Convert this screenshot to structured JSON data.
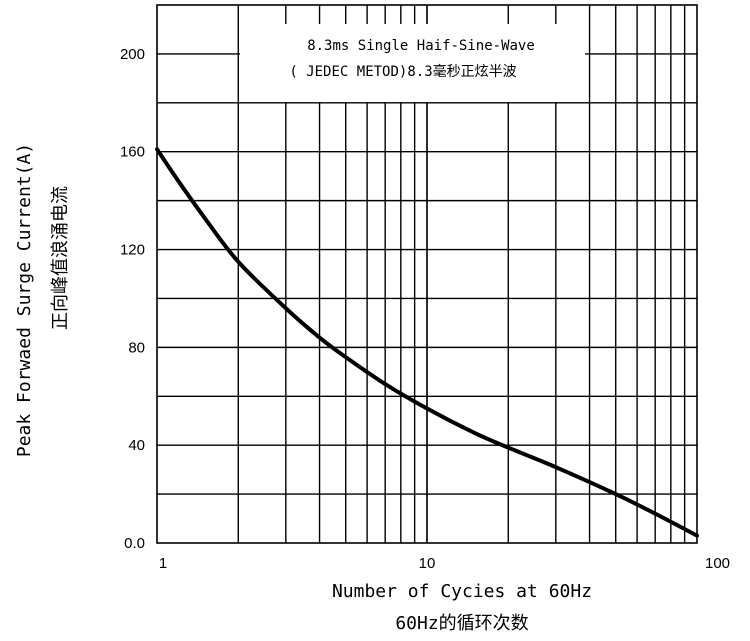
{
  "chart_data": {
    "type": "line",
    "x_scale": "log",
    "xlim": [
      1,
      100
    ],
    "ylim": [
      0,
      220
    ],
    "xlabel": "Number of Cycies at 60Hz",
    "xlabel_cn": "60Hz的循环次数",
    "ylabel": "Peak Forwaed Surge Current(A)",
    "ylabel_cn": "正向峰值浪涌电流",
    "annotation": [
      "8.3ms Single Haif-Sine-Wave",
      "( JEDEC METOD)8.3毫秒正炫半波"
    ],
    "x_ticks": [
      {
        "value": 1,
        "label": "1"
      },
      {
        "value": 10,
        "label": "10"
      },
      {
        "value": 100,
        "label": "100"
      }
    ],
    "y_ticks": [
      {
        "value": 0,
        "label": "0.0"
      },
      {
        "value": 40,
        "label": "40"
      },
      {
        "value": 80,
        "label": "80"
      },
      {
        "value": 120,
        "label": "120"
      },
      {
        "value": 160,
        "label": "160"
      },
      {
        "value": 200,
        "label": "200"
      }
    ],
    "grid": true,
    "series": [
      {
        "x": [
          1,
          1.2,
          1.5,
          2,
          3,
          4,
          5,
          7,
          10,
          15,
          20,
          30,
          50,
          70,
          100
        ],
        "y": [
          161,
          148,
          133,
          115,
          96,
          84,
          76,
          65,
          55,
          45,
          39,
          31,
          20,
          12,
          3
        ],
        "color": "#000000"
      }
    ]
  }
}
